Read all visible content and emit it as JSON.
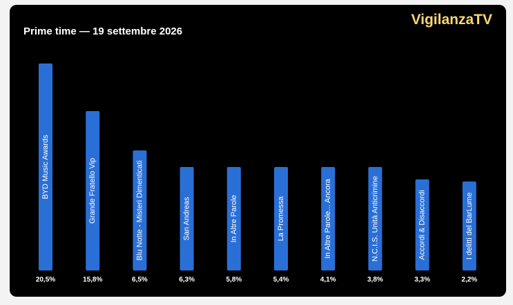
{
  "header": {
    "brand": "VigilanzaTV"
  },
  "colors": {
    "background": "#000000",
    "bar": "#2a6fd6",
    "brand": "#f7d774",
    "text": "#ffffff"
  },
  "chart_data": {
    "type": "bar",
    "title": "Prime time — 19 settembre 2026",
    "xlabel": "",
    "ylabel": "",
    "grid": false,
    "legend": "none",
    "ylim": [
      0,
      22
    ],
    "categories": [
      "BYD Music Awards",
      "Grande Fratello Vip",
      "Blu Notte - Misteri Dimenticati",
      "San Andreas",
      "In Altre Parole",
      "La Promessa",
      "In Altre Parole... Ancora",
      "N.C.I.S. Unità Anticrimine",
      "Accordi & Disaccordi",
      "I delitti del BarLume"
    ],
    "values": [
      20.5,
      15.8,
      6.5,
      6.3,
      5.8,
      5.4,
      4.1,
      3.8,
      3.3,
      2.2
    ],
    "value_labels": [
      "20,5%",
      "15,8%",
      "6,5%",
      "6,3%",
      "5,8%",
      "5,4%",
      "4,1%",
      "3,8%",
      "3,3%",
      "2,2%"
    ],
    "bar_fill_levels": [
      1.0,
      0.77,
      0.58,
      0.5,
      0.5,
      0.5,
      0.5,
      0.5,
      0.44,
      0.43
    ]
  }
}
